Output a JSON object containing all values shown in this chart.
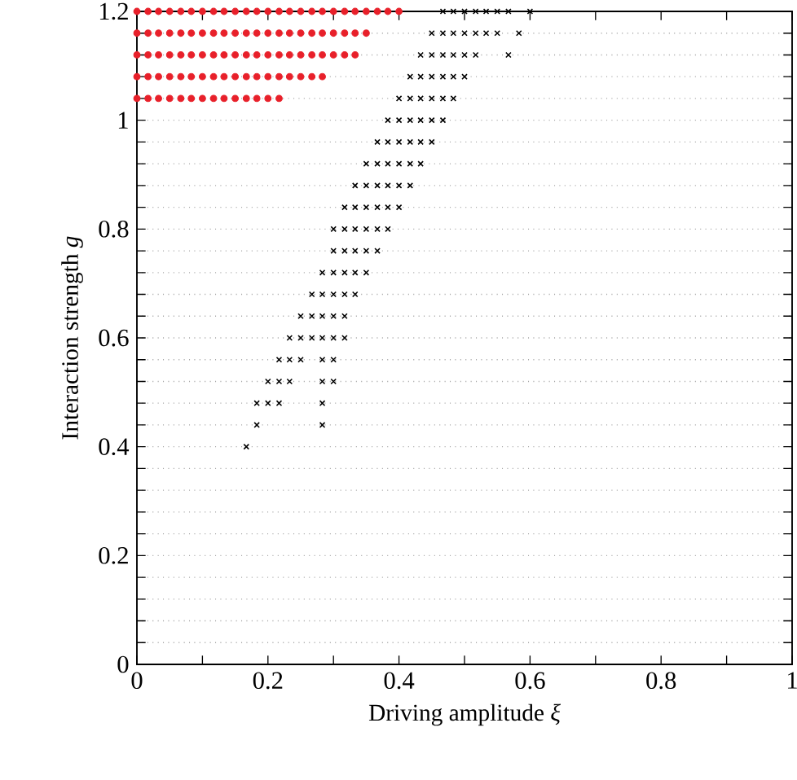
{
  "chart_data": {
    "type": "scatter",
    "xlabel": "Driving amplitude *ξ*",
    "ylabel": "Interaction strength *g*",
    "xlim": [
      0,
      1
    ],
    "ylim": [
      0,
      1.2
    ],
    "xticks": [
      0,
      {
        "value": 0.1,
        "label": null
      },
      0.2,
      {
        "value": 0.3,
        "label": null
      },
      0.4,
      {
        "value": 0.5,
        "label": null
      },
      0.6,
      {
        "value": 0.7,
        "label": null
      },
      0.8,
      {
        "value": 0.9,
        "label": null
      },
      1
    ],
    "yticks": [
      0,
      {
        "value": 0.04,
        "label": null
      },
      {
        "value": 0.08,
        "label": null
      },
      {
        "value": 0.12,
        "label": null
      },
      {
        "value": 0.16,
        "label": null
      },
      0.2,
      {
        "value": 0.24,
        "label": null
      },
      {
        "value": 0.28,
        "label": null
      },
      {
        "value": 0.32,
        "label": null
      },
      {
        "value": 0.36,
        "label": null
      },
      0.4,
      {
        "value": 0.44,
        "label": null
      },
      {
        "value": 0.48,
        "label": null
      },
      {
        "value": 0.52,
        "label": null
      },
      {
        "value": 0.56,
        "label": null
      },
      0.6,
      {
        "value": 0.64,
        "label": null
      },
      {
        "value": 0.68,
        "label": null
      },
      {
        "value": 0.72,
        "label": null
      },
      {
        "value": 0.76,
        "label": null
      },
      0.8,
      {
        "value": 0.84,
        "label": null
      },
      {
        "value": 0.88,
        "label": null
      },
      {
        "value": 0.92,
        "label": null
      },
      {
        "value": 0.96,
        "label": null
      },
      1,
      {
        "value": 1.04,
        "label": null
      },
      {
        "value": 1.08,
        "label": null
      },
      {
        "value": 1.12,
        "label": null
      },
      {
        "value": 1.16,
        "label": null
      },
      1.2
    ],
    "grid": "y",
    "series": [
      {
        "marker": "circle",
        "color": "#e8202a",
        "x": [
          0,
          0.017,
          0.033,
          0.05,
          0.067,
          0.083,
          0.1,
          0.117,
          0.133,
          0.15,
          0.167,
          0.183,
          0.2,
          0.217,
          0.233,
          0.25,
          0.267,
          0.283,
          0.3,
          0.317,
          0.333,
          0.35,
          0.367,
          0.383,
          0.4,
          0,
          0.017,
          0.033,
          0.05,
          0.067,
          0.083,
          0.1,
          0.117,
          0.133,
          0.15,
          0.167,
          0.183,
          0.2,
          0.217,
          0.233,
          0.25,
          0.267,
          0.283,
          0.3,
          0.317,
          0.333,
          0.35,
          0,
          0.017,
          0.033,
          0.05,
          0.067,
          0.083,
          0.1,
          0.117,
          0.133,
          0.15,
          0.167,
          0.183,
          0.2,
          0.217,
          0.233,
          0.25,
          0.267,
          0.283,
          0.3,
          0.317,
          0.333,
          0,
          0.017,
          0.033,
          0.05,
          0.067,
          0.083,
          0.1,
          0.117,
          0.133,
          0.15,
          0.167,
          0.183,
          0.2,
          0.217,
          0.233,
          0.25,
          0.267,
          0.283,
          0,
          0.017,
          0.033,
          0.05,
          0.067,
          0.083,
          0.1,
          0.117,
          0.133,
          0.15,
          0.167,
          0.183,
          0.2,
          0.217
        ],
        "values": [
          1.2,
          1.2,
          1.2,
          1.2,
          1.2,
          1.2,
          1.2,
          1.2,
          1.2,
          1.2,
          1.2,
          1.2,
          1.2,
          1.2,
          1.2,
          1.2,
          1.2,
          1.2,
          1.2,
          1.2,
          1.2,
          1.2,
          1.2,
          1.2,
          1.2,
          1.16,
          1.16,
          1.16,
          1.16,
          1.16,
          1.16,
          1.16,
          1.16,
          1.16,
          1.16,
          1.16,
          1.16,
          1.16,
          1.16,
          1.16,
          1.16,
          1.16,
          1.16,
          1.16,
          1.16,
          1.16,
          1.16,
          1.12,
          1.12,
          1.12,
          1.12,
          1.12,
          1.12,
          1.12,
          1.12,
          1.12,
          1.12,
          1.12,
          1.12,
          1.12,
          1.12,
          1.12,
          1.12,
          1.12,
          1.12,
          1.12,
          1.12,
          1.12,
          1.08,
          1.08,
          1.08,
          1.08,
          1.08,
          1.08,
          1.08,
          1.08,
          1.08,
          1.08,
          1.08,
          1.08,
          1.08,
          1.08,
          1.08,
          1.08,
          1.08,
          1.08,
          1.04,
          1.04,
          1.04,
          1.04,
          1.04,
          1.04,
          1.04,
          1.04,
          1.04,
          1.04,
          1.04,
          1.04,
          1.04,
          1.04
        ]
      },
      {
        "marker": "cross",
        "color": "#000000",
        "x": [
          0.167,
          0.183,
          0.283,
          0.183,
          0.2,
          0.217,
          0.283,
          0.2,
          0.217,
          0.233,
          0.283,
          0.3,
          0.217,
          0.233,
          0.25,
          0.283,
          0.3,
          0.233,
          0.25,
          0.267,
          0.283,
          0.3,
          0.317,
          0.25,
          0.267,
          0.283,
          0.3,
          0.317,
          0.267,
          0.283,
          0.3,
          0.317,
          0.333,
          0.283,
          0.3,
          0.317,
          0.333,
          0.35,
          0.3,
          0.317,
          0.333,
          0.35,
          0.367,
          0.3,
          0.317,
          0.333,
          0.35,
          0.367,
          0.383,
          0.317,
          0.333,
          0.35,
          0.367,
          0.383,
          0.4,
          0.333,
          0.35,
          0.367,
          0.383,
          0.4,
          0.417,
          0.35,
          0.367,
          0.383,
          0.4,
          0.417,
          0.433,
          0.367,
          0.383,
          0.4,
          0.417,
          0.433,
          0.45,
          0.383,
          0.4,
          0.417,
          0.433,
          0.45,
          0.467,
          0.4,
          0.417,
          0.433,
          0.45,
          0.467,
          0.483,
          0.417,
          0.433,
          0.45,
          0.467,
          0.483,
          0.5,
          0.433,
          0.45,
          0.467,
          0.483,
          0.5,
          0.517,
          0.567,
          0.45,
          0.467,
          0.483,
          0.5,
          0.517,
          0.533,
          0.55,
          0.583,
          0.467,
          0.483,
          0.5,
          0.517,
          0.533,
          0.55,
          0.567,
          0.6
        ],
        "values": [
          0.4,
          0.44,
          0.44,
          0.48,
          0.48,
          0.48,
          0.48,
          0.52,
          0.52,
          0.52,
          0.52,
          0.52,
          0.56,
          0.56,
          0.56,
          0.56,
          0.56,
          0.6,
          0.6,
          0.6,
          0.6,
          0.6,
          0.6,
          0.64,
          0.64,
          0.64,
          0.64,
          0.64,
          0.68,
          0.68,
          0.68,
          0.68,
          0.68,
          0.72,
          0.72,
          0.72,
          0.72,
          0.72,
          0.76,
          0.76,
          0.76,
          0.76,
          0.76,
          0.8,
          0.8,
          0.8,
          0.8,
          0.8,
          0.8,
          0.84,
          0.84,
          0.84,
          0.84,
          0.84,
          0.84,
          0.88,
          0.88,
          0.88,
          0.88,
          0.88,
          0.88,
          0.92,
          0.92,
          0.92,
          0.92,
          0.92,
          0.92,
          0.96,
          0.96,
          0.96,
          0.96,
          0.96,
          0.96,
          1,
          1,
          1,
          1,
          1,
          1,
          1.04,
          1.04,
          1.04,
          1.04,
          1.04,
          1.04,
          1.08,
          1.08,
          1.08,
          1.08,
          1.08,
          1.08,
          1.12,
          1.12,
          1.12,
          1.12,
          1.12,
          1.12,
          1.12,
          1.16,
          1.16,
          1.16,
          1.16,
          1.16,
          1.16,
          1.16,
          1.16,
          1.2,
          1.2,
          1.2,
          1.2,
          1.2,
          1.2,
          1.2,
          1.2
        ]
      }
    ]
  }
}
